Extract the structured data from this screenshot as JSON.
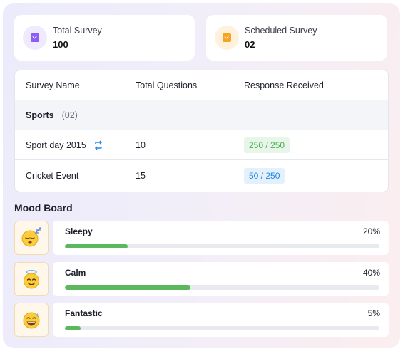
{
  "stats": [
    {
      "label": "Total Survey",
      "value": "100",
      "icon": "survey-doc-icon",
      "color": "#8b5cf6"
    },
    {
      "label": "Scheduled Survey",
      "value": "02",
      "icon": "scheduled-doc-icon",
      "color": "#f5a524"
    }
  ],
  "table": {
    "headers": [
      "Survey Name",
      "Total Questions",
      "Response Received"
    ],
    "group": {
      "name": "Sports",
      "count": "(02)"
    },
    "rows": [
      {
        "name": "Sport day 2015",
        "questions": "10",
        "responses": "250 / 250",
        "status_color": "#4caf50",
        "recurring": true
      },
      {
        "name": "Cricket Event",
        "questions": "15",
        "responses": "50 / 250",
        "status_color": "#1e88e5",
        "recurring": false
      }
    ]
  },
  "mood_board": {
    "title": "Mood Board",
    "items": [
      {
        "label": "Sleepy",
        "percent_text": "20%",
        "percent": 20,
        "emoji": "sleepy-face-icon"
      },
      {
        "label": "Calm",
        "percent_text": "40%",
        "percent": 40,
        "emoji": "halo-face-icon"
      },
      {
        "label": "Fantastic",
        "percent_text": "5%",
        "percent": 5,
        "emoji": "grinning-sweat-face-icon"
      }
    ],
    "bar_color": "#5cb85c"
  }
}
